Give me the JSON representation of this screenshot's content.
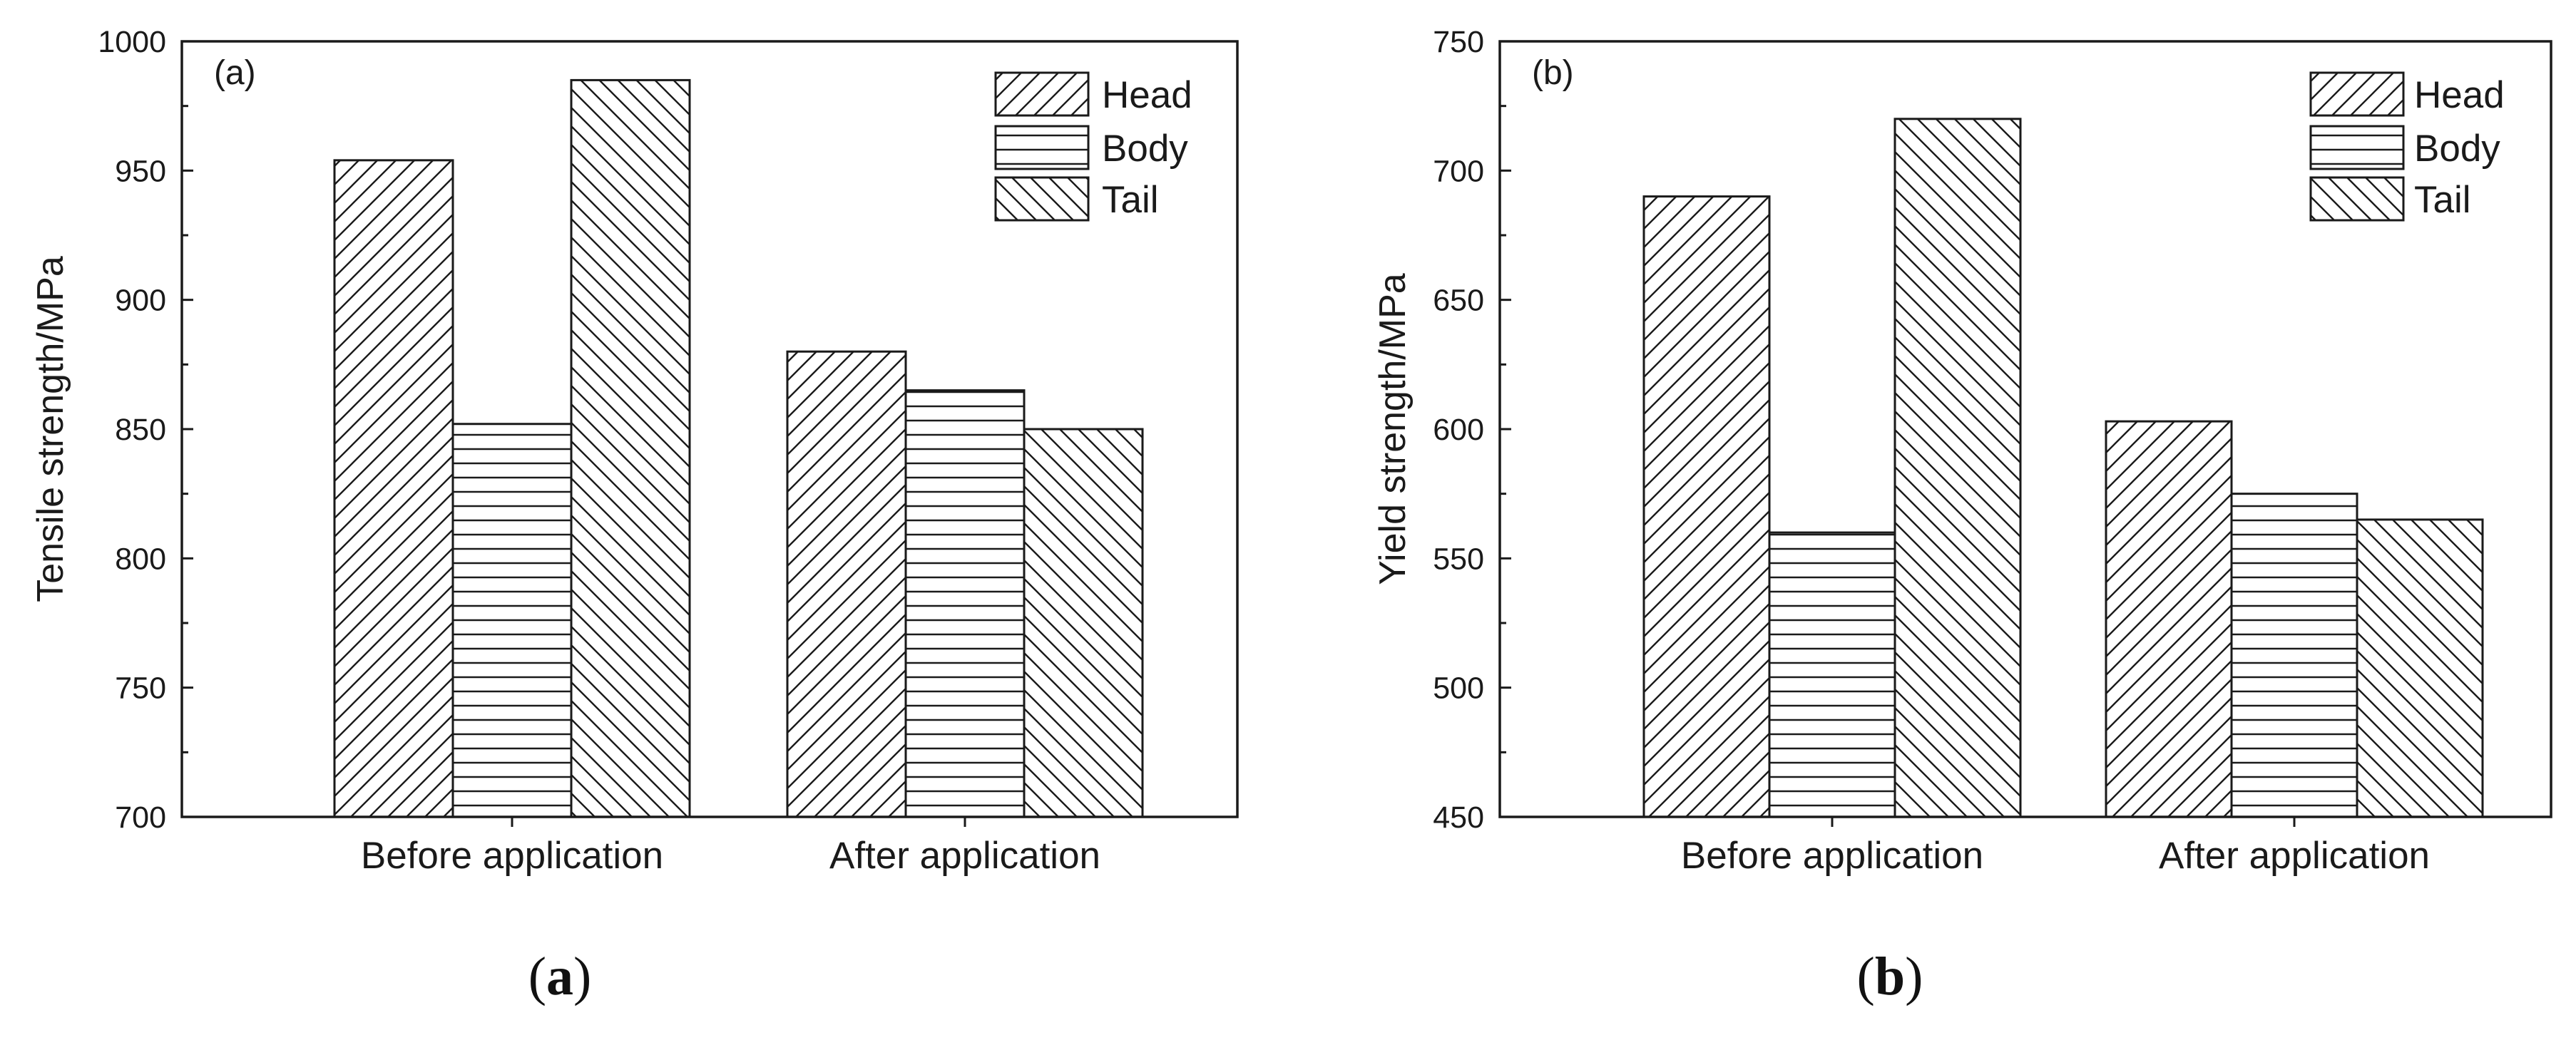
{
  "chart_data": [
    {
      "type": "bar",
      "panel_tag": "(a)",
      "caption": {
        "open": "(",
        "letter": "a",
        "close": ")"
      },
      "categories": [
        "Before application",
        "After application"
      ],
      "series": [
        {
          "name": "Head",
          "values": [
            954,
            880
          ],
          "pattern": "diag-up"
        },
        {
          "name": "Body",
          "values": [
            852,
            865
          ],
          "pattern": "horizontal"
        },
        {
          "name": "Tail",
          "values": [
            985,
            850
          ],
          "pattern": "diag-down"
        }
      ],
      "ylabel": "Tensile strength/MPa",
      "xlabel": "",
      "ylim": [
        700,
        1000
      ],
      "yticks": [
        700,
        750,
        800,
        850,
        900,
        950,
        1000
      ],
      "grid": false,
      "legend_position": "top-right"
    },
    {
      "type": "bar",
      "panel_tag": "(b)",
      "caption": {
        "open": "(",
        "letter": "b",
        "close": ")"
      },
      "categories": [
        "Before application",
        "After application"
      ],
      "series": [
        {
          "name": "Head",
          "values": [
            690,
            603
          ],
          "pattern": "diag-up"
        },
        {
          "name": "Body",
          "values": [
            560,
            575
          ],
          "pattern": "horizontal"
        },
        {
          "name": "Tail",
          "values": [
            720,
            565
          ],
          "pattern": "diag-down"
        }
      ],
      "ylabel": "Yield strength/MPa",
      "xlabel": "",
      "ylim": [
        450,
        750
      ],
      "yticks": [
        450,
        500,
        550,
        600,
        650,
        700,
        750
      ],
      "grid": false,
      "legend_position": "top-right"
    }
  ],
  "colors": {
    "ink": "#1a1a1a",
    "background": "#ffffff"
  }
}
